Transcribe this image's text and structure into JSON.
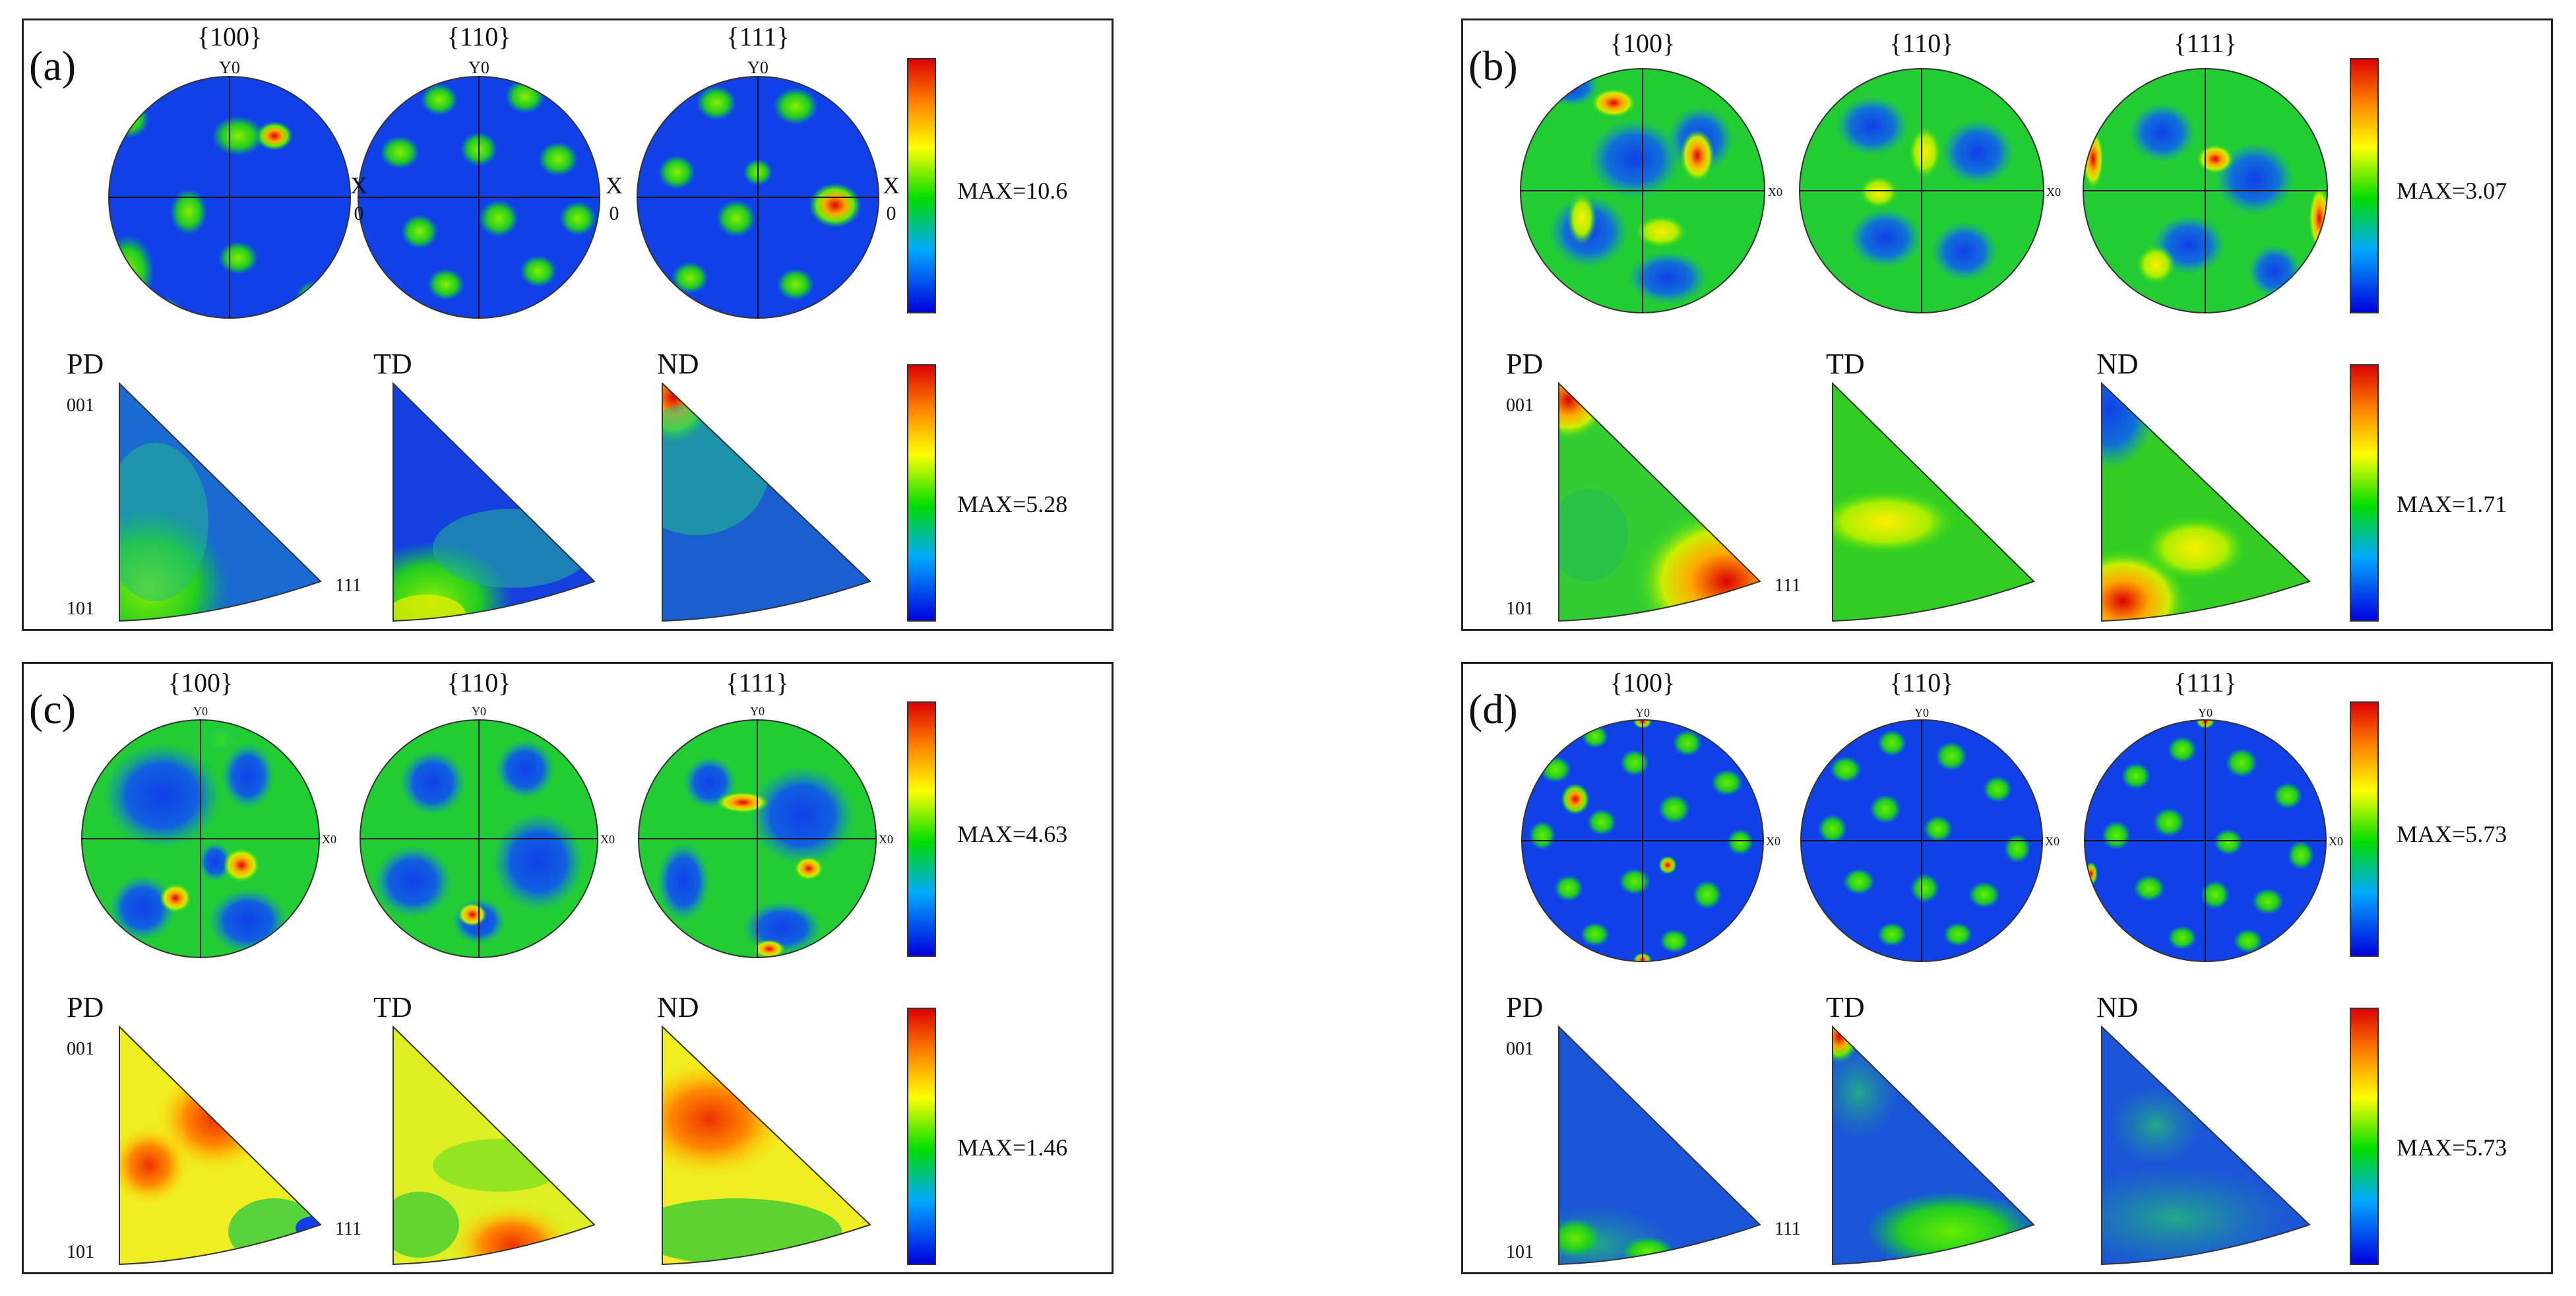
{
  "figure": {
    "pole_labels": [
      "{100}",
      "{110}",
      "{111}"
    ],
    "ipf_labels": [
      "PD",
      "TD",
      "ND"
    ],
    "axis_y": "Y0",
    "axis_x": "X0",
    "axis_x_split": [
      "X",
      "0"
    ],
    "ipf_corner_labels": {
      "c001": "001",
      "c101": "101",
      "c111": "111"
    },
    "colorbar_colors": [
      "#0000dd",
      "#00aaff",
      "#00dd00",
      "#ffff00",
      "#ff8800",
      "#dd0000"
    ]
  },
  "panels": [
    {
      "id": "a",
      "label": "(a)",
      "pf_max": "MAX=10.6",
      "ipf_max": "MAX=5.28"
    },
    {
      "id": "b",
      "label": "(b)",
      "pf_max": "MAX=3.07",
      "ipf_max": "MAX=1.71"
    },
    {
      "id": "c",
      "label": "(c)",
      "pf_max": "MAX=4.63",
      "ipf_max": "MAX=1.46"
    },
    {
      "id": "d",
      "label": "(d)",
      "pf_max": "MAX=5.73",
      "ipf_max": "MAX=5.73"
    }
  ]
}
